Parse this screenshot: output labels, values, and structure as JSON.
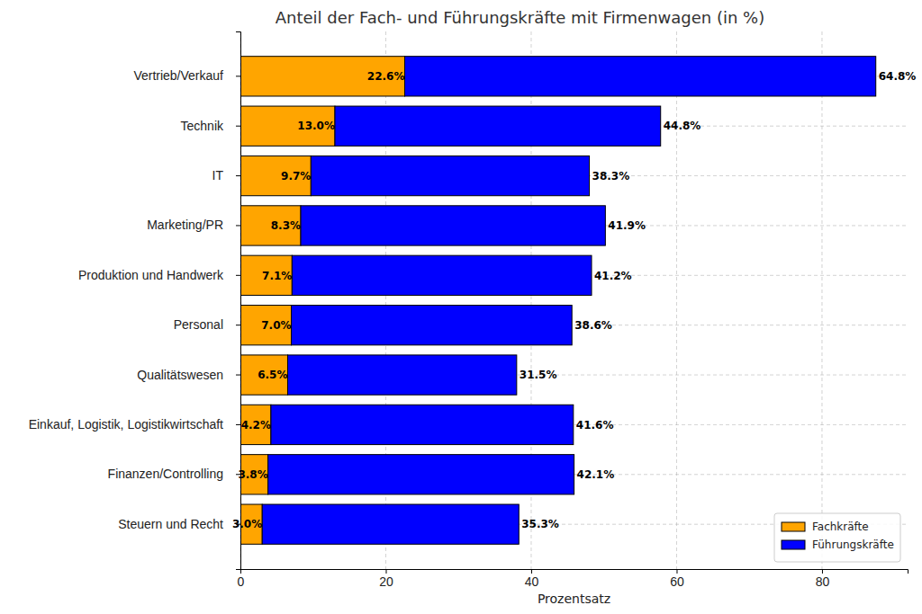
{
  "chart_data": {
    "type": "bar",
    "orientation": "horizontal",
    "stacked": true,
    "title": "Anteil der Fach- und Führungskräfte mit Firmenwagen (in %)",
    "x_label": "Prozentsatz",
    "categories": [
      "Vertrieb/Verkauf",
      "Technik",
      "IT",
      "Marketing/PR",
      "Produktion und Handwerk",
      "Personal",
      "Qualitätswesen",
      "Einkauf, Logistik, Logistikwirtschaft",
      "Finanzen/Controlling",
      "Steuern und Recht"
    ],
    "series": [
      {
        "name": "Fachkräfte",
        "color": "#ffa500",
        "values": [
          22.6,
          13.0,
          9.7,
          8.3,
          7.1,
          7.0,
          6.5,
          4.2,
          3.8,
          3.0
        ],
        "value_labels": [
          "22.6%",
          "13.0%",
          "9.7%",
          "8.3%",
          "7.1%",
          "7.0%",
          "6.5%",
          "4.2%",
          "3.8%",
          "3.0%"
        ]
      },
      {
        "name": "Führungskräfte",
        "color": "#0000ff",
        "values": [
          64.8,
          44.8,
          38.3,
          41.9,
          41.2,
          38.6,
          31.5,
          41.6,
          42.1,
          35.3
        ],
        "value_labels": [
          "64.8%",
          "44.8%",
          "38.3%",
          "41.9%",
          "41.2%",
          "38.6%",
          "31.5%",
          "41.6%",
          "42.1%",
          "35.3%"
        ]
      }
    ],
    "xlim": [
      0,
      91.77
    ],
    "xticks": [
      0,
      20,
      40,
      60,
      80
    ],
    "grid": true,
    "legend": "lower right",
    "data_labels": true
  }
}
